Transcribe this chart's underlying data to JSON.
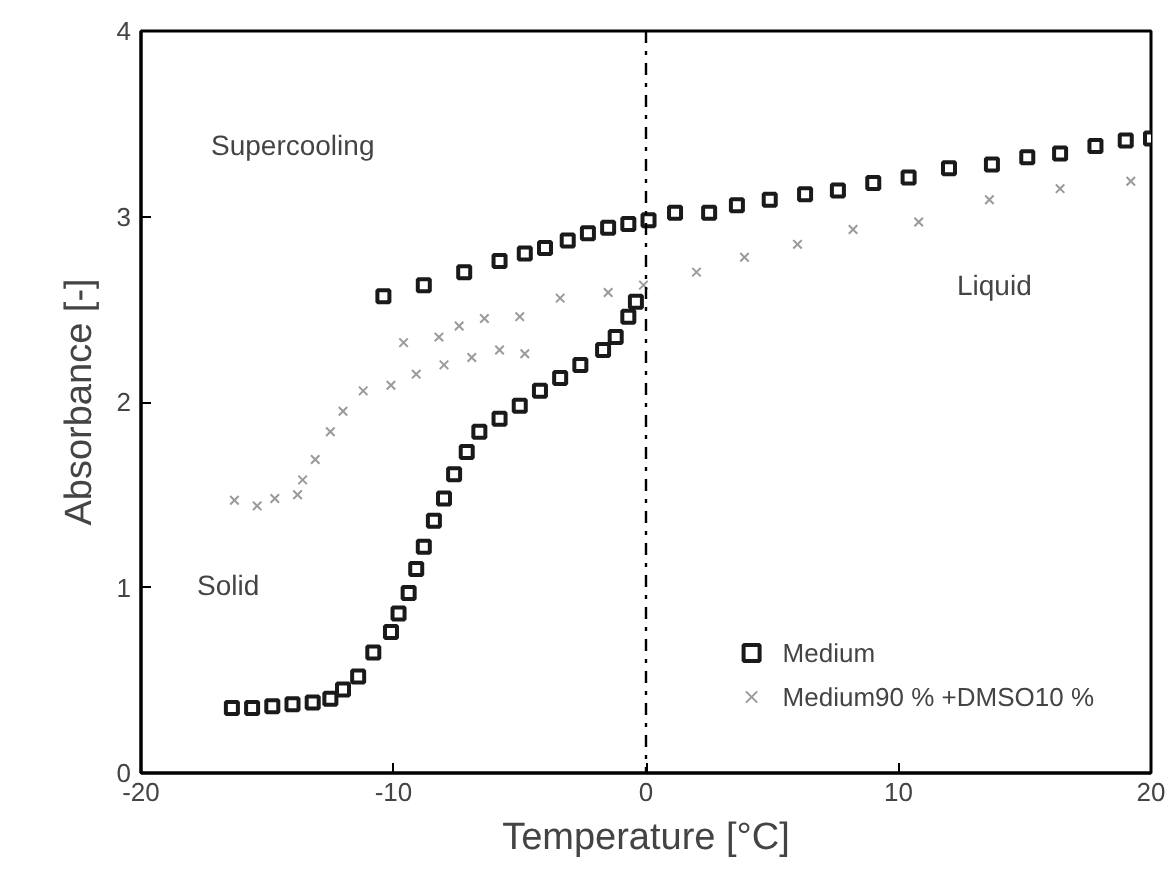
{
  "chart_data": {
    "type": "scatter",
    "xlabel": "Temperature [°C]",
    "ylabel": "Absorbance [-]",
    "xlim": [
      -20,
      20
    ],
    "ylim": [
      0,
      4
    ],
    "xticks": [
      -20,
      -10,
      0,
      10,
      20
    ],
    "yticks": [
      0,
      1,
      2,
      3,
      4
    ],
    "grid": false,
    "legend": "bottom right",
    "ref_lines": [
      {
        "axis": "x",
        "value": 0,
        "color": "#000000",
        "line_style": "dashdot"
      }
    ],
    "annotations": [
      "Supercooling",
      "Liquid",
      "Solid"
    ],
    "series": [
      {
        "name": "Medium",
        "color": "#1a1a1a",
        "marker": "square",
        "x": [
          -16.4,
          -15.6,
          -14.8,
          -14.0,
          -13.2,
          -12.5,
          -12.0,
          -11.4,
          -10.8,
          -10.1,
          -9.8,
          -9.4,
          -9.1,
          -8.8,
          -8.4,
          -8.0,
          -7.6,
          -7.1,
          -6.6,
          -5.8,
          -5.0,
          -4.2,
          -3.4,
          -2.6,
          -1.7,
          -1.2,
          -0.7,
          -0.4,
          -10.4,
          -8.8,
          -7.2,
          -5.8,
          -4.8,
          -4.0,
          -3.1,
          -2.3,
          -1.5,
          -0.7,
          0.1,
          1.15,
          2.5,
          3.6,
          4.9,
          6.3,
          7.6,
          9.0,
          10.4,
          12.0,
          13.7,
          15.1,
          16.4,
          17.8,
          19.0,
          20.0
        ],
        "values": [
          0.35,
          0.35,
          0.36,
          0.37,
          0.38,
          0.4,
          0.45,
          0.52,
          0.65,
          0.76,
          0.86,
          0.97,
          1.1,
          1.22,
          1.36,
          1.48,
          1.61,
          1.73,
          1.84,
          1.91,
          1.98,
          2.06,
          2.13,
          2.2,
          2.28,
          2.35,
          2.46,
          2.54,
          2.57,
          2.63,
          2.7,
          2.76,
          2.8,
          2.83,
          2.87,
          2.91,
          2.94,
          2.96,
          2.98,
          3.02,
          3.02,
          3.06,
          3.09,
          3.12,
          3.14,
          3.18,
          3.21,
          3.26,
          3.28,
          3.32,
          3.34,
          3.38,
          3.41,
          3.42
        ]
      },
      {
        "name": "Medium90 % +DMSO10 %",
        "color": "#9a9a9a",
        "marker": "cross",
        "x": [
          -16.3,
          -15.4,
          -14.7,
          -13.8,
          -13.6,
          -13.1,
          -12.5,
          -12.0,
          -11.2,
          -10.1,
          -9.1,
          -8.0,
          -6.9,
          -5.8,
          -4.8,
          -9.6,
          -8.2,
          -7.4,
          -6.4,
          -5.0,
          -3.4,
          -1.5,
          -0.1,
          2.0,
          3.9,
          6.0,
          8.2,
          10.8,
          13.6,
          16.4,
          19.2
        ],
        "values": [
          1.47,
          1.44,
          1.48,
          1.5,
          1.58,
          1.69,
          1.84,
          1.95,
          2.06,
          2.09,
          2.15,
          2.2,
          2.24,
          2.28,
          2.26,
          2.32,
          2.35,
          2.41,
          2.45,
          2.46,
          2.56,
          2.59,
          2.63,
          2.7,
          2.78,
          2.85,
          2.93,
          2.97,
          3.09,
          3.15,
          3.19
        ]
      }
    ]
  }
}
